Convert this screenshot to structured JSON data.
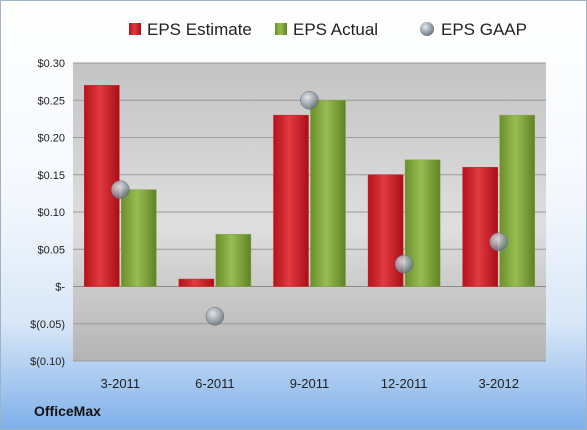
{
  "company": "OfficeMax",
  "colors": {
    "estimate": "#d01f26",
    "actual": "#7fa33a",
    "gaap": "#9aa3ad"
  },
  "chart_data": {
    "type": "bar",
    "categories": [
      "3-2011",
      "6-2011",
      "9-2011",
      "12-2011",
      "3-2012"
    ],
    "series": [
      {
        "name": "EPS Estimate",
        "kind": "bar",
        "values": [
          0.27,
          0.01,
          0.23,
          0.15,
          0.16
        ]
      },
      {
        "name": "EPS Actual",
        "kind": "bar",
        "values": [
          0.13,
          0.07,
          0.25,
          0.17,
          0.23
        ]
      },
      {
        "name": "EPS GAAP",
        "kind": "marker",
        "values": [
          0.13,
          -0.04,
          0.25,
          0.03,
          0.06
        ]
      }
    ],
    "ylim": [
      -0.1,
      0.3
    ],
    "yticks": [
      0.3,
      0.25,
      0.2,
      0.15,
      0.1,
      0.05,
      0,
      -0.05,
      -0.1
    ],
    "ytick_labels": [
      "$0.30",
      "$0.25",
      "$0.20",
      "$0.15",
      "$0.10",
      "$0.05",
      "$-",
      "$(0.05)",
      "$(0.10)"
    ],
    "legend_position": "top",
    "grid": true
  }
}
